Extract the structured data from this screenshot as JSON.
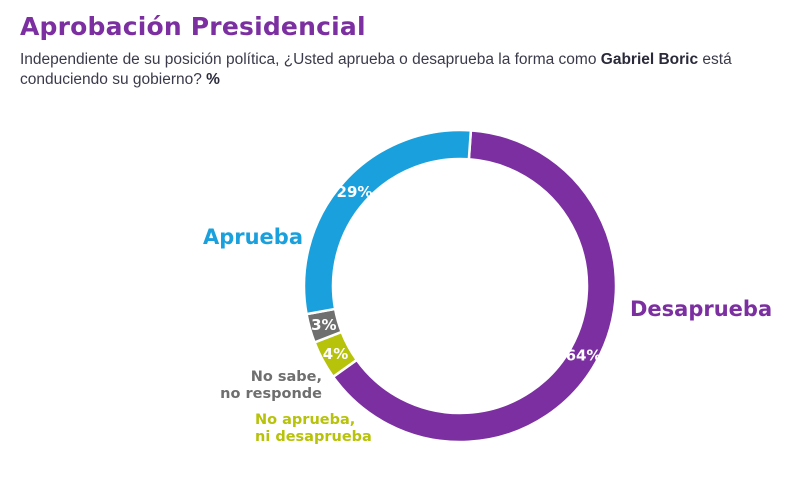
{
  "title": "Aprobación Presidencial",
  "subtitle": {
    "part1": "Independiente de su posición política, ¿Usted aprueba o desaprueba la forma como ",
    "name": "Gabriel Boric",
    "part2": " está conduciendo su gobierno? ",
    "unit": "%"
  },
  "chart_data": {
    "type": "pie",
    "donut": true,
    "categories": [
      "Desaprueba",
      "No aprueba, ni desaprueba",
      "No sabe, no responde",
      "Aprueba"
    ],
    "values": [
      64,
      4,
      3,
      29
    ],
    "value_labels": [
      "64%",
      "4%",
      "3%",
      "29%"
    ],
    "label_lines": [
      [
        "Desaprueba"
      ],
      [
        "No aprueba,",
        "ni desaprueba"
      ],
      [
        "No sabe,",
        "no responde"
      ],
      [
        "Aprueba"
      ]
    ],
    "colors": [
      "#7b2fa0",
      "#b7c20a",
      "#6f6f6f",
      "#1aa0dc"
    ],
    "legend": "none"
  }
}
